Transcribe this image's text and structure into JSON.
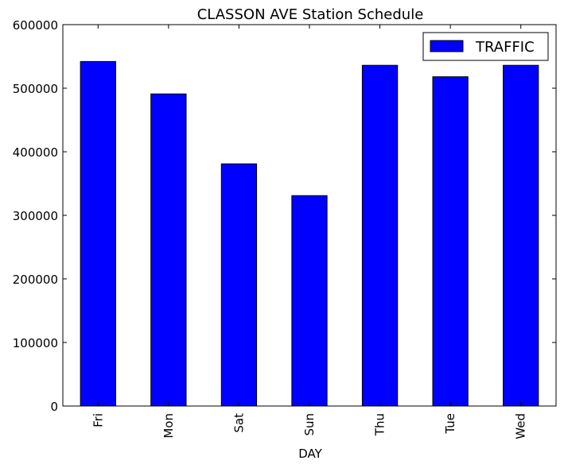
{
  "chart_data": {
    "type": "bar",
    "title": "CLASSON AVE Station Schedule",
    "xlabel": "DAY",
    "ylabel": "",
    "categories": [
      "Fri",
      "Mon",
      "Sat",
      "Sun",
      "Thu",
      "Tue",
      "Wed"
    ],
    "series": [
      {
        "name": "TRAFFIC",
        "values": [
          542000,
          491000,
          381000,
          331000,
          536000,
          518000,
          536000
        ],
        "color": "#0000ff"
      }
    ],
    "ylim": [
      0,
      600000
    ],
    "yticks": [
      "0",
      "100000",
      "200000",
      "300000",
      "400000",
      "500000",
      "600000"
    ],
    "legend_position": "top-right",
    "grid": false
  }
}
